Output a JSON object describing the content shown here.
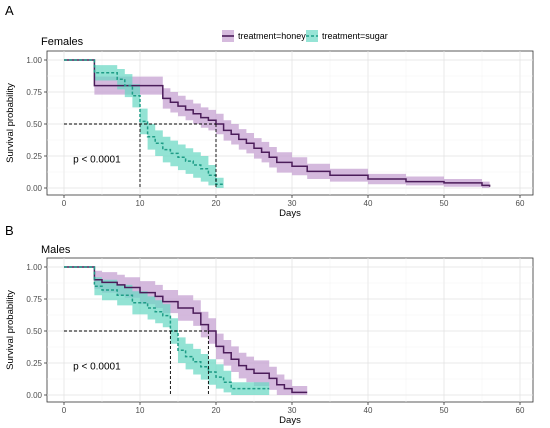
{
  "legend": [
    {
      "label": "treatment=honey",
      "color": "#4b1c5a",
      "fill": "#c49ed0",
      "dash": false
    },
    {
      "label": "treatment=sugar",
      "color": "#1f9d87",
      "fill": "#6ad8c4",
      "dash": true
    }
  ],
  "chart_data": [
    {
      "type": "line",
      "panel_letter": "A",
      "title": "Females",
      "xlabel": "Days",
      "ylabel": "Survival probability",
      "xlim": [
        0,
        60
      ],
      "ylim": [
        0,
        1
      ],
      "xticks": [
        0,
        10,
        20,
        30,
        40,
        50,
        60
      ],
      "yticks": [
        "0.00",
        "0.25",
        "0.50",
        "0.75",
        "1.00"
      ],
      "grid": true,
      "legend_position": "top",
      "annotation": "p < 0.0001",
      "median_lines": [
        10,
        20
      ],
      "series": [
        {
          "name": "treatment=honey",
          "x": [
            0,
            4,
            9,
            13,
            14,
            15,
            16,
            17,
            18,
            19,
            20,
            21,
            22,
            23,
            24,
            25,
            26,
            27,
            28,
            30,
            32,
            35,
            40,
            45,
            50,
            55,
            56
          ],
          "y": [
            1.0,
            0.8,
            0.8,
            0.7,
            0.67,
            0.64,
            0.61,
            0.58,
            0.55,
            0.53,
            0.5,
            0.45,
            0.42,
            0.38,
            0.35,
            0.31,
            0.28,
            0.24,
            0.2,
            0.17,
            0.13,
            0.1,
            0.07,
            0.05,
            0.04,
            0.02,
            0.01
          ],
          "upper": [
            1.0,
            0.87,
            0.87,
            0.78,
            0.75,
            0.72,
            0.69,
            0.66,
            0.63,
            0.61,
            0.58,
            0.53,
            0.5,
            0.46,
            0.43,
            0.39,
            0.36,
            0.32,
            0.28,
            0.24,
            0.19,
            0.15,
            0.11,
            0.09,
            0.07,
            0.05,
            0.04
          ],
          "lower": [
            1.0,
            0.73,
            0.73,
            0.62,
            0.59,
            0.56,
            0.53,
            0.5,
            0.47,
            0.45,
            0.42,
            0.37,
            0.34,
            0.3,
            0.27,
            0.23,
            0.2,
            0.16,
            0.12,
            0.1,
            0.07,
            0.05,
            0.03,
            0.02,
            0.01,
            0.0,
            0.0
          ]
        },
        {
          "name": "treatment=sugar",
          "x": [
            0,
            4,
            7,
            8,
            9,
            10,
            11,
            12,
            13,
            14,
            15,
            16,
            17,
            18,
            19,
            20,
            21
          ],
          "y": [
            1.0,
            0.9,
            0.85,
            0.8,
            0.72,
            0.52,
            0.4,
            0.35,
            0.3,
            0.27,
            0.24,
            0.21,
            0.18,
            0.15,
            0.1,
            0.03,
            0.03
          ],
          "upper": [
            1.0,
            0.96,
            0.93,
            0.89,
            0.81,
            0.62,
            0.5,
            0.45,
            0.4,
            0.37,
            0.34,
            0.31,
            0.28,
            0.25,
            0.18,
            0.08,
            0.08
          ],
          "lower": [
            1.0,
            0.84,
            0.77,
            0.71,
            0.63,
            0.42,
            0.3,
            0.25,
            0.2,
            0.17,
            0.14,
            0.11,
            0.08,
            0.05,
            0.02,
            0.0,
            0.0
          ]
        }
      ]
    },
    {
      "type": "line",
      "panel_letter": "B",
      "title": "Males",
      "xlabel": "Days",
      "ylabel": "Survival probability",
      "xlim": [
        0,
        60
      ],
      "ylim": [
        0,
        1
      ],
      "xticks": [
        0,
        10,
        20,
        30,
        40,
        50,
        60
      ],
      "yticks": [
        "0.00",
        "0.25",
        "0.50",
        "0.75",
        "1.00"
      ],
      "grid": true,
      "annotation": "p < 0.0001",
      "median_lines": [
        14,
        19
      ],
      "series": [
        {
          "name": "treatment=honey",
          "x": [
            0,
            4,
            5,
            7,
            8,
            10,
            12,
            13,
            15,
            17,
            18,
            19,
            20,
            21,
            22,
            23,
            24,
            25,
            27,
            28,
            29,
            30,
            32
          ],
          "y": [
            1.0,
            0.9,
            0.88,
            0.86,
            0.84,
            0.8,
            0.77,
            0.73,
            0.68,
            0.64,
            0.55,
            0.5,
            0.38,
            0.33,
            0.28,
            0.23,
            0.2,
            0.17,
            0.13,
            0.08,
            0.05,
            0.02,
            0.02
          ],
          "upper": [
            1.0,
            0.97,
            0.96,
            0.94,
            0.92,
            0.89,
            0.86,
            0.82,
            0.78,
            0.74,
            0.65,
            0.6,
            0.48,
            0.43,
            0.38,
            0.33,
            0.3,
            0.27,
            0.22,
            0.16,
            0.12,
            0.07,
            0.07
          ],
          "lower": [
            1.0,
            0.83,
            0.8,
            0.78,
            0.76,
            0.71,
            0.68,
            0.64,
            0.58,
            0.54,
            0.45,
            0.4,
            0.28,
            0.23,
            0.18,
            0.13,
            0.1,
            0.07,
            0.04,
            0.0,
            0.0,
            0.0,
            0.0
          ]
        },
        {
          "name": "treatment=sugar",
          "x": [
            0,
            4,
            5,
            7,
            9,
            11,
            12,
            13,
            14,
            15,
            16,
            17,
            18,
            19,
            20,
            21,
            22,
            25,
            27
          ],
          "y": [
            1.0,
            0.85,
            0.82,
            0.78,
            0.72,
            0.68,
            0.65,
            0.62,
            0.5,
            0.35,
            0.3,
            0.26,
            0.22,
            0.18,
            0.14,
            0.1,
            0.05,
            0.05,
            0.05
          ],
          "upper": [
            1.0,
            0.92,
            0.9,
            0.86,
            0.81,
            0.77,
            0.74,
            0.71,
            0.6,
            0.45,
            0.4,
            0.36,
            0.32,
            0.28,
            0.24,
            0.19,
            0.1,
            0.1,
            0.1
          ],
          "lower": [
            1.0,
            0.78,
            0.74,
            0.7,
            0.63,
            0.59,
            0.56,
            0.53,
            0.4,
            0.25,
            0.2,
            0.16,
            0.12,
            0.08,
            0.05,
            0.02,
            0.0,
            0.0,
            0.0
          ]
        }
      ]
    }
  ]
}
